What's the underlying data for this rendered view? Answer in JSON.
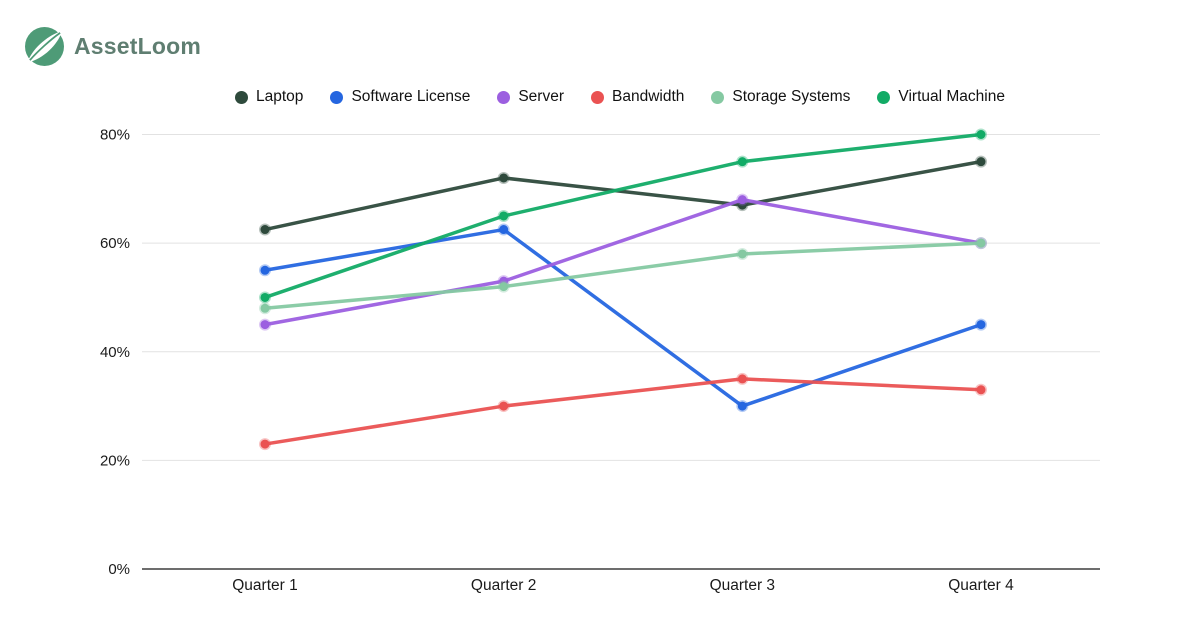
{
  "logo": {
    "text": "AssetLoom",
    "icon": "leaf-logo-icon",
    "brand_color": "#4e9b77",
    "text_color": "#5f7e71"
  },
  "chart_data": {
    "type": "line",
    "title": "",
    "xlabel": "",
    "ylabel": "",
    "categories": [
      "Quarter 1",
      "Quarter 2",
      "Quarter 3",
      "Quarter 4"
    ],
    "series": [
      {
        "name": "Laptop",
        "color": "#2e4a3c",
        "values": [
          62.5,
          72,
          67,
          75
        ]
      },
      {
        "name": "Software License",
        "color": "#2566e0",
        "values": [
          55,
          62.5,
          30,
          45
        ]
      },
      {
        "name": "Server",
        "color": "#9c5fe0",
        "values": [
          45,
          53,
          68,
          60
        ]
      },
      {
        "name": "Bandwidth",
        "color": "#ea5252",
        "values": [
          23,
          30,
          35,
          33
        ]
      },
      {
        "name": "Storage Systems",
        "color": "#85c9a2",
        "values": [
          48,
          52,
          58,
          60
        ]
      },
      {
        "name": "Virtual Machine",
        "color": "#12ab66",
        "values": [
          50,
          65,
          75,
          80
        ]
      }
    ],
    "ylim": [
      0,
      80
    ],
    "ytick_step": 20,
    "ytick_labels": [
      "0%",
      "20%",
      "40%",
      "60%",
      "80%"
    ],
    "grid": true,
    "legend_position": "top"
  },
  "colors": {
    "background": "#ffffff",
    "gridline": "#e2e2e2",
    "axis_line": "#3d3d3d",
    "tick_text": "#1a1a1a",
    "legend_text": "#121212"
  }
}
